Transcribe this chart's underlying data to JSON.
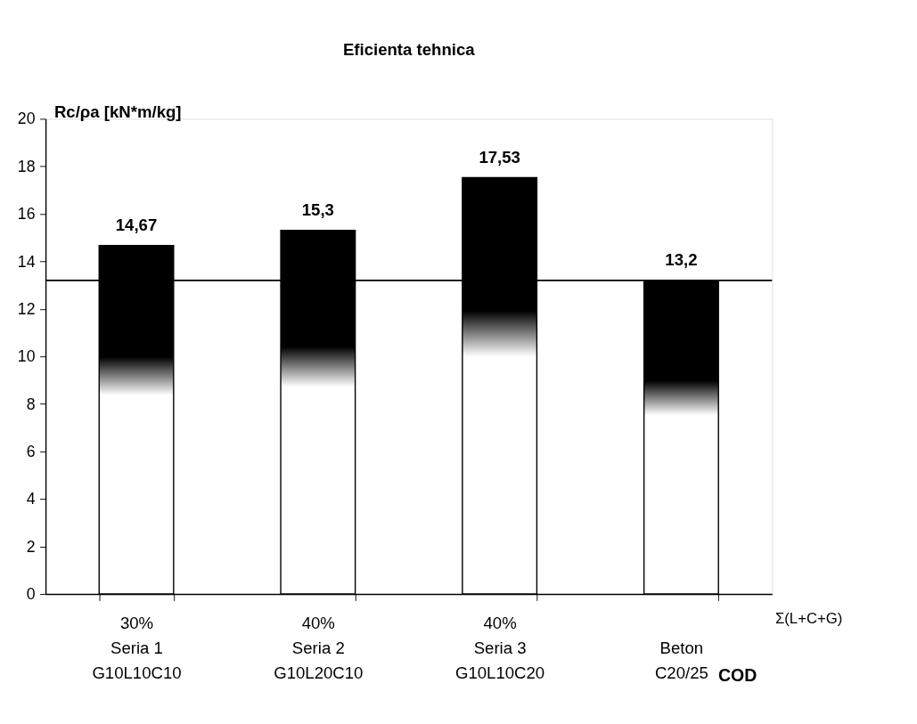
{
  "chart_data": {
    "type": "bar",
    "title": "Eficienta tehnica",
    "ylabel": "Rc/ρa [kN*m/kg]",
    "xlabel": "COD",
    "categories": [
      "30%\nSeria 1\nG10L10C10",
      "40%\nSeria 2\nG10L20C10",
      "40%\nSeria 3\nG10L10C20",
      "Beton\nC20/25"
    ],
    "values": [
      14.67,
      15.3,
      17.53,
      13.2
    ],
    "color": "#000000",
    "value_labels": [
      "14,67",
      "15,3",
      "17,53",
      "13,2"
    ],
    "ylim": [
      0,
      20
    ],
    "yticks": [
      0,
      2,
      4,
      6,
      8,
      10,
      12,
      14,
      16,
      18,
      20
    ],
    "grid": false,
    "ref_lines": [
      {
        "axis": "y",
        "value": 13.2,
        "color": "#000000"
      }
    ],
    "annotations": [
      "Σ(L+C+G)"
    ]
  }
}
